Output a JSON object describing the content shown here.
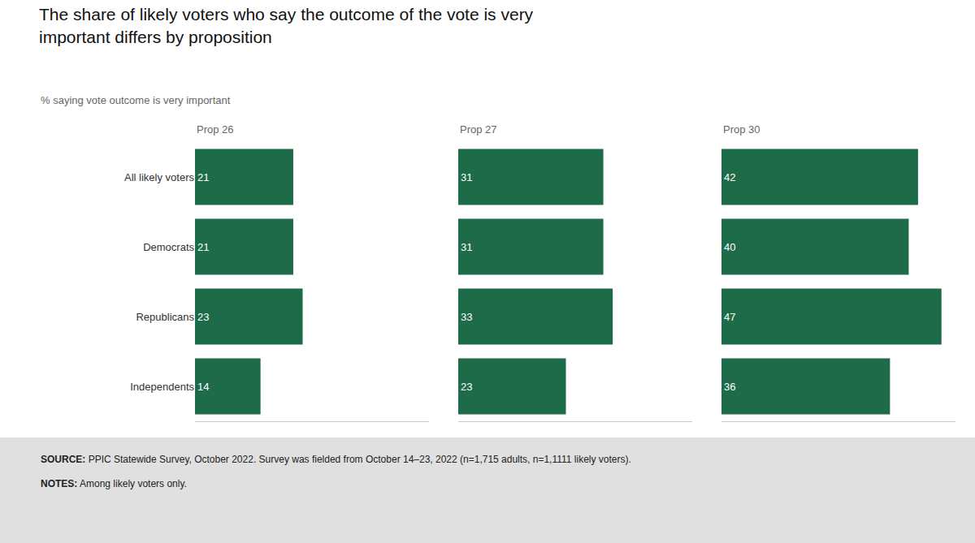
{
  "chart_data": {
    "type": "bar",
    "orientation": "horizontal",
    "title": "The share of likely voters who say the outcome of the vote is very\nimportant differs by proposition",
    "subtitle": "% saying vote outcome is very important",
    "categories": [
      "All likely voters",
      "Democrats",
      "Republicans",
      "Independents"
    ],
    "series": [
      {
        "name": "Prop 26",
        "values": [
          21,
          21,
          23,
          14
        ]
      },
      {
        "name": "Prop 27",
        "values": [
          31,
          31,
          33,
          23
        ]
      },
      {
        "name": "Prop 30",
        "values": [
          42,
          40,
          47,
          36
        ]
      }
    ],
    "color": "#1e6b4a",
    "xlim": [
      0,
      50
    ],
    "xticks": [],
    "tick_labels": "y",
    "grid": false,
    "data_labels": true,
    "annotations": [
      "SOURCE: PPIC Statewide Survey, October 2022. Survey was fielded from October 14–23, 2022 (n=1,715 adults, n=1,1111 likely voters).",
      "NOTES: Among likely voters only."
    ]
  }
}
